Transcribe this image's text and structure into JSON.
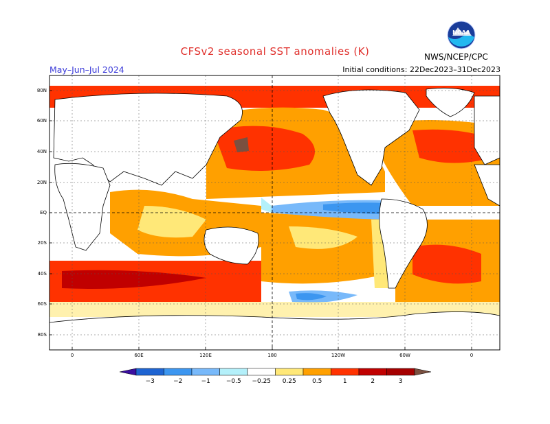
{
  "header": {
    "title": "CFSv2 seasonal SST anomalies (K)",
    "period": "May–Jun–Jul 2024",
    "initial_conditions": "Initial conditions: 22Dec2023–31Dec2023",
    "agency": "NWS/NCEP/CPC",
    "logo_text": "NOAA"
  },
  "axes": {
    "lat_labels": [
      "80N",
      "60N",
      "40N",
      "20N",
      "EQ",
      "20S",
      "40S",
      "60S",
      "80S"
    ],
    "lon_labels": [
      "0",
      "60E",
      "120E",
      "180",
      "120W",
      "60W",
      "0"
    ]
  },
  "colorbar": {
    "levels": [
      "−3",
      "−2",
      "−1",
      "−0.5",
      "−0.25",
      "0.25",
      "0.5",
      "1",
      "2",
      "3"
    ],
    "colors": [
      "#3b0fa0",
      "#1e64d2",
      "#3c96f0",
      "#78b9fa",
      "#b4f0fa",
      "#ffffff",
      "#ffe878",
      "#ffa000",
      "#ff3200",
      "#c00000",
      "#a50000",
      "#7a5040"
    ]
  }
}
